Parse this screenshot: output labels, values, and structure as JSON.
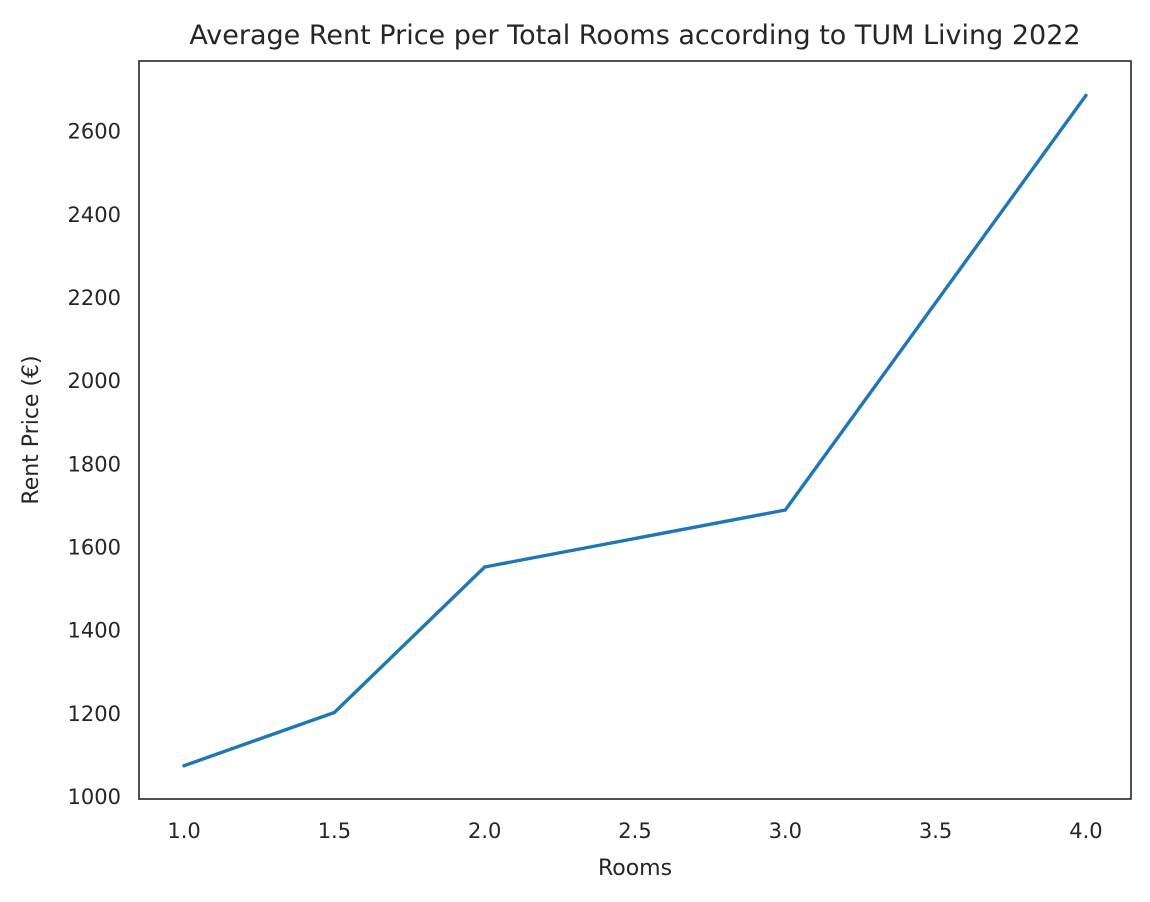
{
  "chart_data": {
    "type": "line",
    "title": "Average Rent Price per Total Rooms according to TUM Living 2022",
    "xlabel": "Rooms",
    "ylabel": "Rent Price (€)",
    "xlim": [
      0.85,
      4.15
    ],
    "ylim": [
      995,
      2770
    ],
    "xticks": [
      "1.0",
      "1.5",
      "2.0",
      "2.5",
      "3.0",
      "3.5",
      "4.0"
    ],
    "yticks": [
      "1000",
      "1200",
      "1400",
      "1600",
      "1800",
      "2000",
      "2200",
      "2400",
      "2600"
    ],
    "grid": false,
    "series": [
      {
        "color": "#1f77b4",
        "x": [
          1.0,
          1.5,
          2.0,
          3.0,
          4.0
        ],
        "y": [
          1075,
          1203,
          1553,
          1690,
          2687
        ]
      }
    ]
  }
}
